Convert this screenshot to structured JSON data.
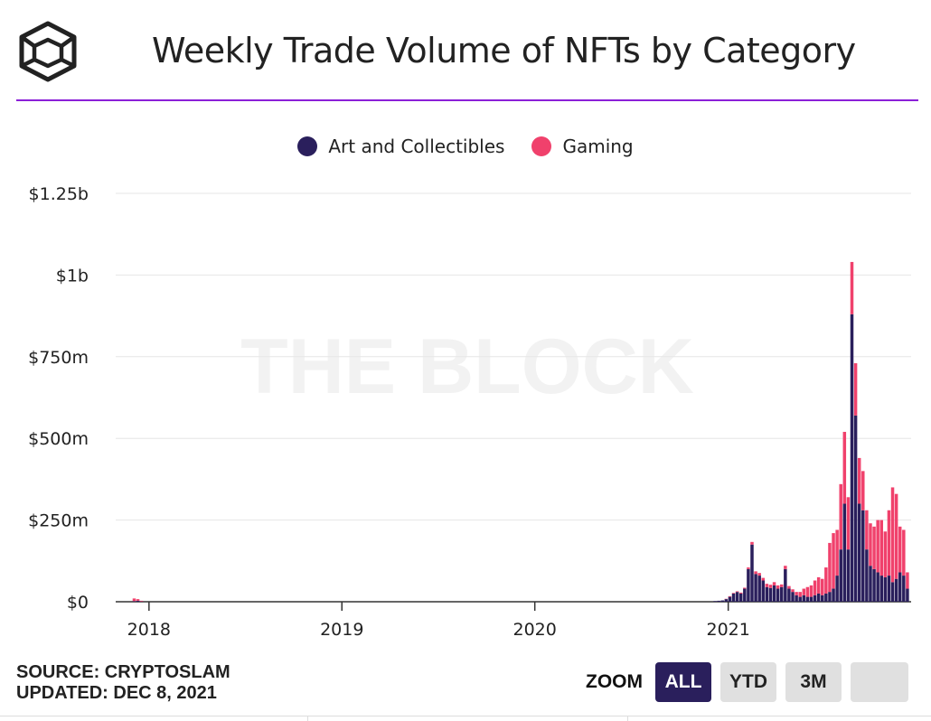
{
  "header": {
    "title": "Weekly Trade Volume of NFTs by Category",
    "logo_icon": "the-block-cube-logo-icon"
  },
  "legend": {
    "items": [
      {
        "label": "Art and Collectibles",
        "color": "#2a1f5c"
      },
      {
        "label": "Gaming",
        "color": "#f0416c"
      }
    ]
  },
  "watermark": "THE BLOCK",
  "footer": {
    "source": "SOURCE: CRYPTOSLAM",
    "updated": "UPDATED: DEC 8, 2021"
  },
  "zoom": {
    "label": "ZOOM",
    "buttons": [
      "ALL",
      "YTD",
      "3M",
      ""
    ],
    "active": "ALL"
  },
  "colors": {
    "art": "#2a1f5c",
    "gaming": "#f0416c",
    "grid": "#e6e6e6",
    "divider": "#8b1fd8"
  },
  "chart_data": {
    "type": "bar",
    "stacked": true,
    "title": "Weekly Trade Volume of NFTs by Category",
    "xlabel": "",
    "ylabel": "",
    "ylim": [
      0,
      1250000000
    ],
    "yticks": [
      {
        "value": 0,
        "label": "$0"
      },
      {
        "value": 250000000,
        "label": "$250m"
      },
      {
        "value": 500000000,
        "label": "$500m"
      },
      {
        "value": 750000000,
        "label": "$750m"
      },
      {
        "value": 1000000000,
        "label": "$1b"
      },
      {
        "value": 1250000000,
        "label": "$1.25b"
      }
    ],
    "xlim": [
      "2017-10-30",
      "2021-12-13"
    ],
    "xticks": [
      {
        "value": "2018-01-01",
        "label": "2018"
      },
      {
        "value": "2019-01-01",
        "label": "2019"
      },
      {
        "value": "2020-01-01",
        "label": "2020"
      },
      {
        "value": "2021-01-01",
        "label": "2021"
      }
    ],
    "grid": true,
    "legend_position": "top-center",
    "series": [
      {
        "name": "Art and Collectibles",
        "color": "#2a1f5c",
        "points": [
          [
            "2017-12-04",
            2000000
          ],
          [
            "2017-12-11",
            3000000
          ],
          [
            "2017-12-18",
            1000000
          ],
          [
            "2020-12-07",
            2000000
          ],
          [
            "2020-12-14",
            3000000
          ],
          [
            "2020-12-21",
            4000000
          ],
          [
            "2020-12-28",
            8000000
          ],
          [
            "2021-01-04",
            15000000
          ],
          [
            "2021-01-11",
            25000000
          ],
          [
            "2021-01-18",
            30000000
          ],
          [
            "2021-01-25",
            25000000
          ],
          [
            "2021-02-01",
            40000000
          ],
          [
            "2021-02-08",
            100000000
          ],
          [
            "2021-02-15",
            175000000
          ],
          [
            "2021-02-22",
            85000000
          ],
          [
            "2021-03-01",
            80000000
          ],
          [
            "2021-03-08",
            65000000
          ],
          [
            "2021-03-15",
            45000000
          ],
          [
            "2021-03-22",
            42000000
          ],
          [
            "2021-03-29",
            50000000
          ],
          [
            "2021-04-05",
            40000000
          ],
          [
            "2021-04-12",
            45000000
          ],
          [
            "2021-04-19",
            100000000
          ],
          [
            "2021-04-26",
            40000000
          ],
          [
            "2021-05-03",
            30000000
          ],
          [
            "2021-05-10",
            20000000
          ],
          [
            "2021-05-17",
            15000000
          ],
          [
            "2021-05-24",
            20000000
          ],
          [
            "2021-05-31",
            15000000
          ],
          [
            "2021-06-07",
            15000000
          ],
          [
            "2021-06-14",
            20000000
          ],
          [
            "2021-06-21",
            25000000
          ],
          [
            "2021-06-28",
            20000000
          ],
          [
            "2021-07-05",
            25000000
          ],
          [
            "2021-07-12",
            30000000
          ],
          [
            "2021-07-19",
            40000000
          ],
          [
            "2021-07-26",
            80000000
          ],
          [
            "2021-08-02",
            160000000
          ],
          [
            "2021-08-09",
            300000000
          ],
          [
            "2021-08-16",
            160000000
          ],
          [
            "2021-08-23",
            880000000
          ],
          [
            "2021-08-30",
            570000000
          ],
          [
            "2021-09-06",
            300000000
          ],
          [
            "2021-09-13",
            280000000
          ],
          [
            "2021-09-20",
            160000000
          ],
          [
            "2021-09-27",
            110000000
          ],
          [
            "2021-10-04",
            100000000
          ],
          [
            "2021-10-11",
            90000000
          ],
          [
            "2021-10-18",
            80000000
          ],
          [
            "2021-10-25",
            75000000
          ],
          [
            "2021-11-01",
            80000000
          ],
          [
            "2021-11-08",
            60000000
          ],
          [
            "2021-11-15",
            70000000
          ],
          [
            "2021-11-22",
            90000000
          ],
          [
            "2021-11-29",
            80000000
          ],
          [
            "2021-12-06",
            40000000
          ]
        ]
      },
      {
        "name": "Gaming",
        "color": "#f0416c",
        "points": [
          [
            "2017-12-04",
            8000000
          ],
          [
            "2017-12-11",
            5000000
          ],
          [
            "2017-12-18",
            2000000
          ],
          [
            "2020-12-07",
            0
          ],
          [
            "2020-12-14",
            0
          ],
          [
            "2020-12-21",
            0
          ],
          [
            "2020-12-28",
            1000000
          ],
          [
            "2021-01-04",
            2000000
          ],
          [
            "2021-01-11",
            2000000
          ],
          [
            "2021-01-18",
            2000000
          ],
          [
            "2021-01-25",
            3000000
          ],
          [
            "2021-02-01",
            3000000
          ],
          [
            "2021-02-08",
            5000000
          ],
          [
            "2021-02-15",
            8000000
          ],
          [
            "2021-02-22",
            8000000
          ],
          [
            "2021-03-01",
            8000000
          ],
          [
            "2021-03-08",
            8000000
          ],
          [
            "2021-03-15",
            10000000
          ],
          [
            "2021-03-22",
            10000000
          ],
          [
            "2021-03-29",
            10000000
          ],
          [
            "2021-04-05",
            10000000
          ],
          [
            "2021-04-12",
            8000000
          ],
          [
            "2021-04-19",
            10000000
          ],
          [
            "2021-04-26",
            8000000
          ],
          [
            "2021-05-03",
            8000000
          ],
          [
            "2021-05-10",
            10000000
          ],
          [
            "2021-05-17",
            15000000
          ],
          [
            "2021-05-24",
            20000000
          ],
          [
            "2021-05-31",
            30000000
          ],
          [
            "2021-06-07",
            35000000
          ],
          [
            "2021-06-14",
            45000000
          ],
          [
            "2021-06-21",
            50000000
          ],
          [
            "2021-06-28",
            50000000
          ],
          [
            "2021-07-05",
            80000000
          ],
          [
            "2021-07-12",
            150000000
          ],
          [
            "2021-07-19",
            170000000
          ],
          [
            "2021-07-26",
            140000000
          ],
          [
            "2021-08-02",
            200000000
          ],
          [
            "2021-08-09",
            220000000
          ],
          [
            "2021-08-16",
            160000000
          ],
          [
            "2021-08-23",
            160000000
          ],
          [
            "2021-08-30",
            160000000
          ],
          [
            "2021-09-06",
            140000000
          ],
          [
            "2021-09-13",
            120000000
          ],
          [
            "2021-09-20",
            120000000
          ],
          [
            "2021-09-27",
            130000000
          ],
          [
            "2021-10-04",
            130000000
          ],
          [
            "2021-10-11",
            160000000
          ],
          [
            "2021-10-18",
            170000000
          ],
          [
            "2021-10-25",
            140000000
          ],
          [
            "2021-11-01",
            200000000
          ],
          [
            "2021-11-08",
            290000000
          ],
          [
            "2021-11-15",
            260000000
          ],
          [
            "2021-11-22",
            140000000
          ],
          [
            "2021-11-29",
            140000000
          ],
          [
            "2021-12-06",
            50000000
          ]
        ]
      }
    ]
  }
}
